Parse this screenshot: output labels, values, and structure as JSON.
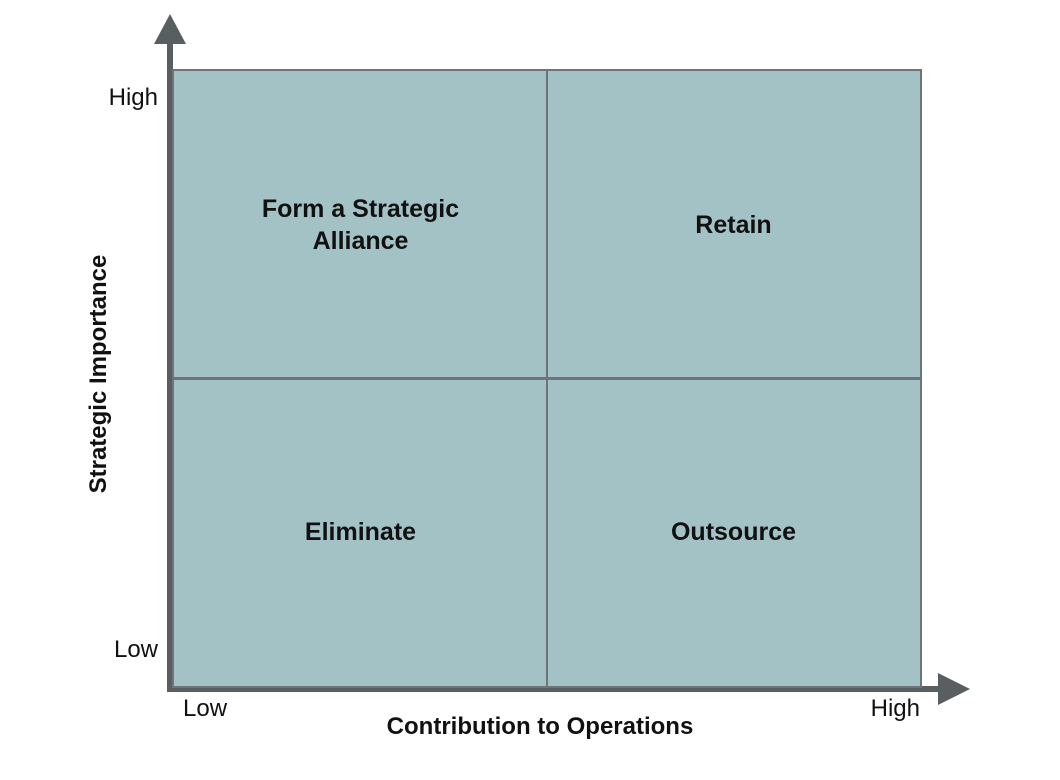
{
  "diagram": {
    "type": "quadrant-matrix",
    "y_axis": {
      "title": "Strategic Importance",
      "high_label": "High",
      "low_label": "Low"
    },
    "x_axis": {
      "title": "Contribution to Operations",
      "low_label": "Low",
      "high_label": "High"
    },
    "quadrants": {
      "top_left": "Form a Strategic\nAlliance",
      "top_right": "Retain",
      "bottom_left": "Eliminate",
      "bottom_right": "Outsource"
    },
    "colors": {
      "quadrant_fill": "#a3c2c6",
      "grid_line": "#6e7478",
      "axis": "#595e61",
      "text": "#111111"
    }
  }
}
